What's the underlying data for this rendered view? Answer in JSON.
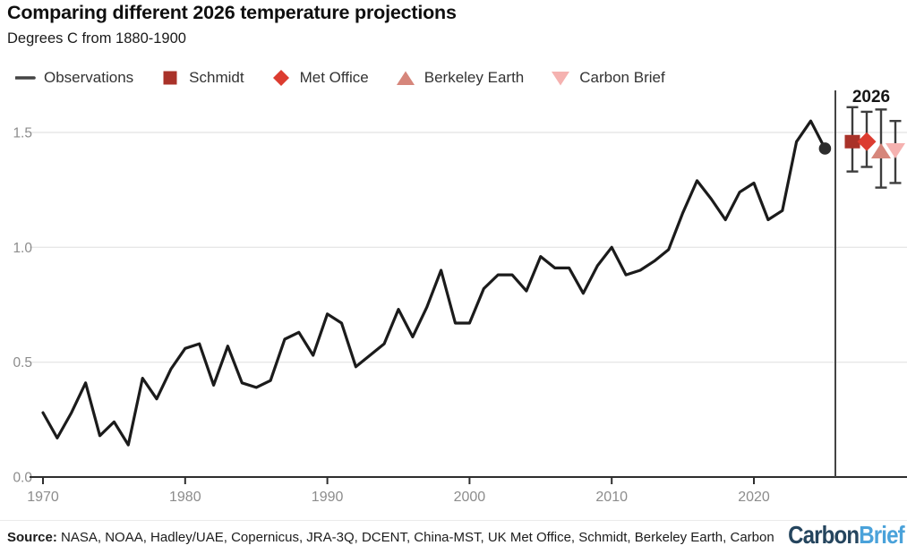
{
  "header": {
    "title": "Comparing different 2026 temperature projections",
    "subtitle": "Degrees C from 1880-1900"
  },
  "legend": {
    "items": [
      {
        "label": "Observations",
        "marker": "line",
        "color": "#444444"
      },
      {
        "label": "Schmidt",
        "marker": "square",
        "color": "#a93229"
      },
      {
        "label": "Met Office",
        "marker": "diamond",
        "color": "#dc3c30"
      },
      {
        "label": "Berkeley Earth",
        "marker": "triangle-up",
        "color": "#d6867b"
      },
      {
        "label": "Carbon Brief",
        "marker": "triangle-down",
        "color": "#f5b2b0"
      }
    ]
  },
  "chart_data": {
    "type": "line",
    "title": "Comparing different 2026 temperature projections",
    "ylabel": "Degrees C from 1880-1900",
    "xlabel": "",
    "grid": "horizontal-light",
    "legend_position": "top",
    "xlim": [
      1969,
      2031
    ],
    "ylim": [
      0,
      1.62
    ],
    "xticks": [
      1970,
      1980,
      1990,
      2000,
      2010,
      2020
    ],
    "yticks": [
      0.0,
      0.5,
      1.0,
      1.5
    ],
    "x": [
      1970,
      1971,
      1972,
      1973,
      1974,
      1975,
      1976,
      1977,
      1978,
      1979,
      1980,
      1981,
      1982,
      1983,
      1984,
      1985,
      1986,
      1987,
      1988,
      1989,
      1990,
      1991,
      1992,
      1993,
      1994,
      1995,
      1996,
      1997,
      1998,
      1999,
      2000,
      2001,
      2002,
      2003,
      2004,
      2005,
      2006,
      2007,
      2008,
      2009,
      2010,
      2011,
      2012,
      2013,
      2014,
      2015,
      2016,
      2017,
      2018,
      2019,
      2020,
      2021,
      2022,
      2023,
      2024,
      2025
    ],
    "series": [
      {
        "name": "Observations",
        "color": "#1b1b1b",
        "values": [
          0.28,
          0.17,
          0.28,
          0.41,
          0.18,
          0.24,
          0.14,
          0.43,
          0.34,
          0.47,
          0.56,
          0.58,
          0.4,
          0.57,
          0.41,
          0.39,
          0.42,
          0.6,
          0.63,
          0.53,
          0.71,
          0.67,
          0.48,
          0.53,
          0.58,
          0.73,
          0.61,
          0.74,
          0.9,
          0.67,
          0.67,
          0.82,
          0.88,
          0.88,
          0.81,
          0.96,
          0.91,
          0.91,
          0.8,
          0.92,
          1.0,
          0.88,
          0.9,
          0.94,
          0.99,
          1.15,
          1.29,
          1.21,
          1.12,
          1.24,
          1.28,
          1.12,
          1.16,
          1.46,
          1.55,
          1.43
        ]
      }
    ],
    "end_dot": {
      "x": 2025,
      "value": 1.43,
      "color": "#2d2d2d"
    },
    "projection_label": "2026",
    "projections": [
      {
        "name": "Schmidt",
        "marker": "square",
        "color": "#a93229",
        "value": 1.46,
        "low": 1.33,
        "high": 1.61
      },
      {
        "name": "Met Office",
        "marker": "diamond",
        "color": "#dc3c30",
        "value": 1.46,
        "low": 1.35,
        "high": 1.59
      },
      {
        "name": "Berkeley Earth",
        "marker": "triangle-up",
        "color": "#d6867b",
        "value": 1.42,
        "low": 1.26,
        "high": 1.6
      },
      {
        "name": "Carbon Brief",
        "marker": "triangle-down",
        "color": "#f5b2b0",
        "value": 1.42,
        "low": 1.28,
        "high": 1.55
      }
    ],
    "error_bar_color": "#3d3d3d",
    "grid_color": "#e7e7e7",
    "axis_color": "#2e2e2e",
    "tick_label_color": "#8c8c8c"
  },
  "footer": {
    "source_label": "Source:",
    "source_text": " NASA, NOAA, Hadley/UAE, Copernicus, JRA-3Q, DCENT, China-MST, UK Met Office, Schmidt, Berkeley Earth, Carbon",
    "logo_part1": "Carbon",
    "logo_part2": "Brief"
  }
}
